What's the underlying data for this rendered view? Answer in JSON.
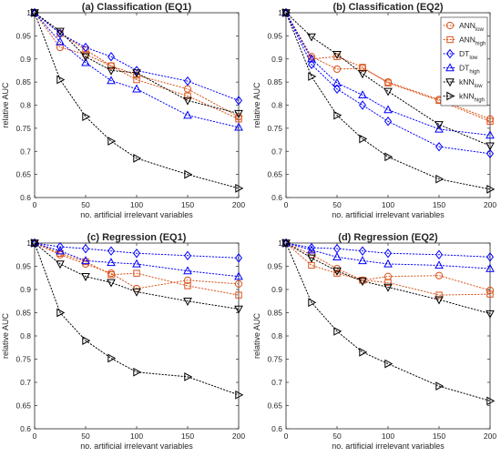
{
  "chart_data": [
    {
      "type": "line",
      "title": "(a) Classification (EQ1)",
      "xlabel": "no. artificial irrelevant variables",
      "ylabel": "relative AUC",
      "x": [
        0,
        25,
        50,
        75,
        100,
        150,
        200
      ],
      "xticks": [
        0,
        50,
        100,
        150,
        200
      ],
      "xlim": [
        0,
        200
      ],
      "ylim": [
        0.6,
        1.0
      ],
      "yticks": [
        0.6,
        0.65,
        0.7,
        0.75,
        0.8,
        0.85,
        0.9,
        0.95,
        1
      ],
      "grid": false,
      "legend": null,
      "series": [
        {
          "key": "ann_low",
          "color": "#d95319",
          "values": [
            1.0,
            0.925,
            0.91,
            0.885,
            0.865,
            0.835,
            0.775
          ]
        },
        {
          "key": "ann_high",
          "color": "#d95319",
          "values": [
            1.0,
            0.955,
            0.92,
            0.885,
            0.855,
            0.82,
            0.77
          ]
        },
        {
          "key": "dt_low",
          "color": "#0000ff",
          "values": [
            1.0,
            0.955,
            0.925,
            0.905,
            0.875,
            0.852,
            0.81
          ]
        },
        {
          "key": "dt_high",
          "color": "#0000ff",
          "values": [
            1.0,
            0.937,
            0.892,
            0.853,
            0.835,
            0.778,
            0.752
          ]
        },
        {
          "key": "knn_low",
          "color": "#000000",
          "values": [
            1.0,
            0.96,
            0.905,
            0.875,
            0.87,
            0.81,
            0.782
          ]
        },
        {
          "key": "knn_high",
          "color": "#000000",
          "values": [
            1.0,
            0.855,
            0.775,
            0.722,
            0.685,
            0.65,
            0.62
          ]
        }
      ]
    },
    {
      "type": "line",
      "title": "(b) Classification (EQ2)",
      "xlabel": "no. artificial irrelevant variables",
      "ylabel": "relative AUC",
      "x": [
        0,
        25,
        50,
        75,
        100,
        150,
        200
      ],
      "xticks": [
        0,
        50,
        100,
        150,
        200
      ],
      "xlim": [
        0,
        200
      ],
      "ylim": [
        0.6,
        1.0
      ],
      "yticks": [
        0.6,
        0.65,
        0.7,
        0.75,
        0.8,
        0.85,
        0.9,
        0.95,
        1
      ],
      "grid": false,
      "legend": {
        "position": "top-right",
        "entries": [
          {
            "key": "ann_low",
            "name": "ANN",
            "sub": "low"
          },
          {
            "key": "ann_high",
            "name": "ANN",
            "sub": "high"
          },
          {
            "key": "dt_low",
            "name": "DT",
            "sub": "low"
          },
          {
            "key": "dt_high",
            "name": "DT",
            "sub": "high"
          },
          {
            "key": "knn_low",
            "name": "kNN",
            "sub": "low"
          },
          {
            "key": "knn_high",
            "name": "kNN",
            "sub": "high"
          }
        ]
      },
      "series": [
        {
          "key": "ann_low",
          "color": "#d95319",
          "values": [
            1.0,
            0.905,
            0.878,
            0.88,
            0.85,
            0.812,
            0.77
          ]
        },
        {
          "key": "ann_high",
          "color": "#d95319",
          "values": [
            1.0,
            0.9,
            0.905,
            0.882,
            0.848,
            0.81,
            0.765
          ]
        },
        {
          "key": "dt_low",
          "color": "#0000ff",
          "values": [
            1.0,
            0.888,
            0.835,
            0.8,
            0.765,
            0.71,
            0.695
          ]
        },
        {
          "key": "dt_high",
          "color": "#0000ff",
          "values": [
            1.0,
            0.9,
            0.848,
            0.822,
            0.79,
            0.748,
            0.735
          ]
        },
        {
          "key": "knn_low",
          "color": "#000000",
          "values": [
            1.0,
            0.948,
            0.91,
            0.868,
            0.83,
            0.758,
            0.712
          ]
        },
        {
          "key": "knn_high",
          "color": "#000000",
          "values": [
            1.0,
            0.862,
            0.778,
            0.727,
            0.688,
            0.64,
            0.618
          ]
        }
      ]
    },
    {
      "type": "line",
      "title": "(c) Regression (EQ1)",
      "xlabel": "no. artificial irrelevant variables",
      "ylabel": "relative AUC",
      "x": [
        0,
        25,
        50,
        75,
        100,
        150,
        200
      ],
      "xticks": [
        0,
        50,
        100,
        150,
        200
      ],
      "xlim": [
        0,
        200
      ],
      "ylim": [
        0.6,
        1.0
      ],
      "yticks": [
        0.6,
        0.65,
        0.7,
        0.75,
        0.8,
        0.85,
        0.9,
        0.95,
        1
      ],
      "grid": false,
      "legend": null,
      "series": [
        {
          "key": "ann_low",
          "color": "#d95319",
          "values": [
            1.0,
            0.975,
            0.955,
            0.935,
            0.902,
            0.92,
            0.912
          ]
        },
        {
          "key": "ann_high",
          "color": "#d95319",
          "values": [
            1.0,
            0.978,
            0.96,
            0.932,
            0.935,
            0.908,
            0.888
          ]
        },
        {
          "key": "dt_low",
          "color": "#0000ff",
          "values": [
            1.0,
            0.992,
            0.988,
            0.983,
            0.978,
            0.973,
            0.968
          ]
        },
        {
          "key": "dt_high",
          "color": "#0000ff",
          "values": [
            1.0,
            0.983,
            0.962,
            0.958,
            0.955,
            0.94,
            0.928
          ]
        },
        {
          "key": "knn_low",
          "color": "#000000",
          "values": [
            1.0,
            0.955,
            0.928,
            0.915,
            0.895,
            0.875,
            0.858
          ]
        },
        {
          "key": "knn_high",
          "color": "#000000",
          "values": [
            1.0,
            0.85,
            0.79,
            0.752,
            0.722,
            0.712,
            0.673
          ]
        }
      ]
    },
    {
      "type": "line",
      "title": "(d) Regression (EQ2)",
      "xlabel": "no. artificial irrelevant variables",
      "ylabel": "relative AUC",
      "x": [
        0,
        25,
        50,
        75,
        100,
        150,
        200
      ],
      "xticks": [
        0,
        50,
        100,
        150,
        200
      ],
      "xlim": [
        0,
        200
      ],
      "ylim": [
        0.6,
        1.0
      ],
      "yticks": [
        0.6,
        0.65,
        0.7,
        0.75,
        0.8,
        0.85,
        0.9,
        0.95,
        1
      ],
      "grid": false,
      "legend": null,
      "series": [
        {
          "key": "ann_low",
          "color": "#d95319",
          "values": [
            1.0,
            0.975,
            0.945,
            0.92,
            0.928,
            0.93,
            0.898
          ]
        },
        {
          "key": "ann_high",
          "color": "#d95319",
          "values": [
            1.0,
            0.952,
            0.935,
            0.92,
            0.915,
            0.888,
            0.89
          ]
        },
        {
          "key": "dt_low",
          "color": "#0000ff",
          "values": [
            1.0,
            0.99,
            0.988,
            0.983,
            0.978,
            0.975,
            0.97
          ]
        },
        {
          "key": "dt_high",
          "color": "#0000ff",
          "values": [
            1.0,
            0.985,
            0.97,
            0.962,
            0.955,
            0.952,
            0.945
          ]
        },
        {
          "key": "knn_low",
          "color": "#000000",
          "values": [
            1.0,
            0.968,
            0.94,
            0.918,
            0.905,
            0.878,
            0.848
          ]
        },
        {
          "key": "knn_high",
          "color": "#000000",
          "values": [
            1.0,
            0.872,
            0.81,
            0.765,
            0.74,
            0.692,
            0.66
          ]
        }
      ]
    }
  ],
  "series_styles": {
    "ann_low": {
      "marker": "circle"
    },
    "ann_high": {
      "marker": "square"
    },
    "dt_low": {
      "marker": "diamond"
    },
    "dt_high": {
      "marker": "triangle-up"
    },
    "knn_low": {
      "marker": "triangle-down"
    },
    "knn_high": {
      "marker": "triangle-right"
    }
  }
}
